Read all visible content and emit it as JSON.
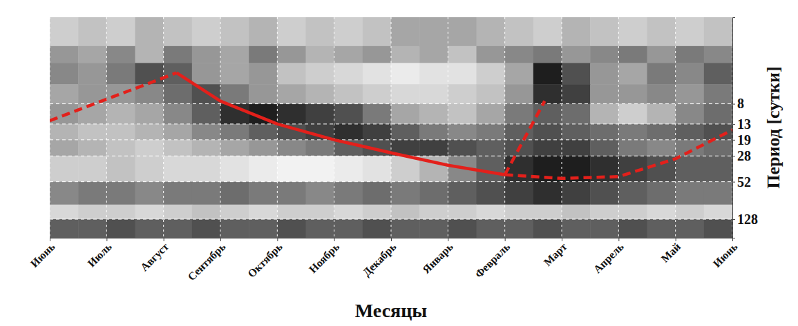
{
  "chart_data": {
    "type": "line",
    "x_label": "Месяцы",
    "y_label": "Период [сутки]",
    "xlim": [
      0,
      12
    ],
    "xticks": [
      {
        "value": 0,
        "label": "Июнь"
      },
      {
        "value": 1,
        "label": "Июль"
      },
      {
        "value": 2,
        "label": "Август"
      },
      {
        "value": 3,
        "label": "Сентябрь"
      },
      {
        "value": 4,
        "label": "Октябрь"
      },
      {
        "value": 5,
        "label": "Ноябрь"
      },
      {
        "value": 6,
        "label": "Декабрь"
      },
      {
        "value": 7,
        "label": "Январь"
      },
      {
        "value": 8,
        "label": "Февраль"
      },
      {
        "value": 9,
        "label": "Март"
      },
      {
        "value": 10,
        "label": "Апрель"
      },
      {
        "value": 11,
        "label": "Май"
      },
      {
        "value": 12,
        "label": "Июнь"
      }
    ],
    "ylim": [
      1,
      200
    ],
    "yticks": [
      8,
      13,
      19,
      28,
      52,
      128
    ],
    "log": "y",
    "grid": true,
    "series": [
      {
        "color": "#e3201b",
        "line_style": "dashed",
        "x": [
          0,
          2.23
        ],
        "values": [
          12,
          3.8
        ]
      },
      {
        "color": "#e3201b",
        "line_style": "solid",
        "x": [
          2.23,
          3.0,
          4.0,
          5.0,
          6.0,
          7.0,
          8.0
        ],
        "values": [
          3.8,
          7.5,
          13,
          19,
          26,
          35,
          44
        ]
      },
      {
        "color": "#e3201b",
        "line_style": "dashed",
        "x": [
          8.0,
          8.7
        ],
        "values": [
          44,
          7.5
        ]
      },
      {
        "color": "#e3201b",
        "line_style": "dashed",
        "x": [
          8.0,
          9.0,
          10.0,
          11.0,
          12.0
        ],
        "values": [
          44,
          48,
          46,
          30,
          15
        ]
      }
    ],
    "heatmap": {
      "x_bins": [
        0,
        0.5,
        1,
        1.5,
        2,
        2.5,
        3,
        3.5,
        4,
        4.5,
        5,
        5.5,
        6,
        6.5,
        7,
        7.5,
        8,
        8.5,
        9,
        9.5,
        10,
        10.5,
        11,
        11.5,
        12
      ],
      "y_bins": [
        1,
        2,
        3,
        5,
        8,
        13,
        19,
        28,
        52,
        90,
        128,
        200
      ],
      "cells": [
        [
          0.3,
          0.35,
          0.3,
          0.4,
          0.35,
          0.3,
          0.35,
          0.4,
          0.3,
          0.35,
          0.3,
          0.35,
          0.45,
          0.45,
          0.45,
          0.4,
          0.35,
          0.3,
          0.4,
          0.35,
          0.3,
          0.35,
          0.3,
          0.35
        ],
        [
          0.5,
          0.45,
          0.55,
          0.4,
          0.6,
          0.5,
          0.45,
          0.6,
          0.5,
          0.4,
          0.45,
          0.5,
          0.4,
          0.45,
          0.35,
          0.5,
          0.55,
          0.6,
          0.5,
          0.55,
          0.6,
          0.5,
          0.6,
          0.55
        ],
        [
          0.55,
          0.5,
          0.6,
          0.75,
          0.7,
          0.5,
          0.45,
          0.5,
          0.35,
          0.3,
          0.25,
          0.2,
          0.15,
          0.2,
          0.2,
          0.3,
          0.45,
          0.9,
          0.75,
          0.5,
          0.45,
          0.6,
          0.55,
          0.7
        ],
        [
          0.45,
          0.5,
          0.5,
          0.55,
          0.65,
          0.75,
          0.6,
          0.5,
          0.45,
          0.4,
          0.35,
          0.3,
          0.25,
          0.25,
          0.3,
          0.35,
          0.5,
          0.85,
          0.8,
          0.5,
          0.5,
          0.55,
          0.5,
          0.6
        ],
        [
          0.5,
          0.45,
          0.4,
          0.45,
          0.55,
          0.7,
          0.85,
          0.9,
          0.85,
          0.8,
          0.75,
          0.6,
          0.45,
          0.4,
          0.35,
          0.45,
          0.6,
          0.7,
          0.65,
          0.4,
          0.3,
          0.4,
          0.55,
          0.65
        ],
        [
          0.4,
          0.35,
          0.35,
          0.4,
          0.45,
          0.55,
          0.6,
          0.7,
          0.75,
          0.8,
          0.85,
          0.8,
          0.7,
          0.6,
          0.55,
          0.6,
          0.7,
          0.75,
          0.7,
          0.65,
          0.6,
          0.65,
          0.7,
          0.75
        ],
        [
          0.45,
          0.4,
          0.35,
          0.3,
          0.35,
          0.4,
          0.45,
          0.5,
          0.55,
          0.6,
          0.7,
          0.75,
          0.8,
          0.8,
          0.75,
          0.7,
          0.75,
          0.8,
          0.8,
          0.7,
          0.6,
          0.55,
          0.6,
          0.65
        ],
        [
          0.3,
          0.3,
          0.35,
          0.3,
          0.25,
          0.25,
          0.2,
          0.15,
          0.1,
          0.1,
          0.15,
          0.2,
          0.3,
          0.4,
          0.55,
          0.7,
          0.85,
          0.9,
          0.9,
          0.85,
          0.8,
          0.75,
          0.7,
          0.7
        ],
        [
          0.55,
          0.6,
          0.6,
          0.55,
          0.6,
          0.6,
          0.65,
          0.6,
          0.6,
          0.55,
          0.6,
          0.65,
          0.6,
          0.65,
          0.7,
          0.75,
          0.8,
          0.85,
          0.8,
          0.75,
          0.7,
          0.65,
          0.6,
          0.6
        ],
        [
          0.25,
          0.3,
          0.3,
          0.25,
          0.3,
          0.35,
          0.3,
          0.25,
          0.3,
          0.3,
          0.25,
          0.3,
          0.35,
          0.3,
          0.3,
          0.25,
          0.3,
          0.3,
          0.35,
          0.3,
          0.3,
          0.25,
          0.3,
          0.25
        ],
        [
          0.7,
          0.7,
          0.75,
          0.7,
          0.7,
          0.75,
          0.7,
          0.7,
          0.75,
          0.7,
          0.7,
          0.75,
          0.7,
          0.7,
          0.75,
          0.7,
          0.7,
          0.75,
          0.7,
          0.7,
          0.75,
          0.7,
          0.7,
          0.75
        ]
      ]
    }
  }
}
